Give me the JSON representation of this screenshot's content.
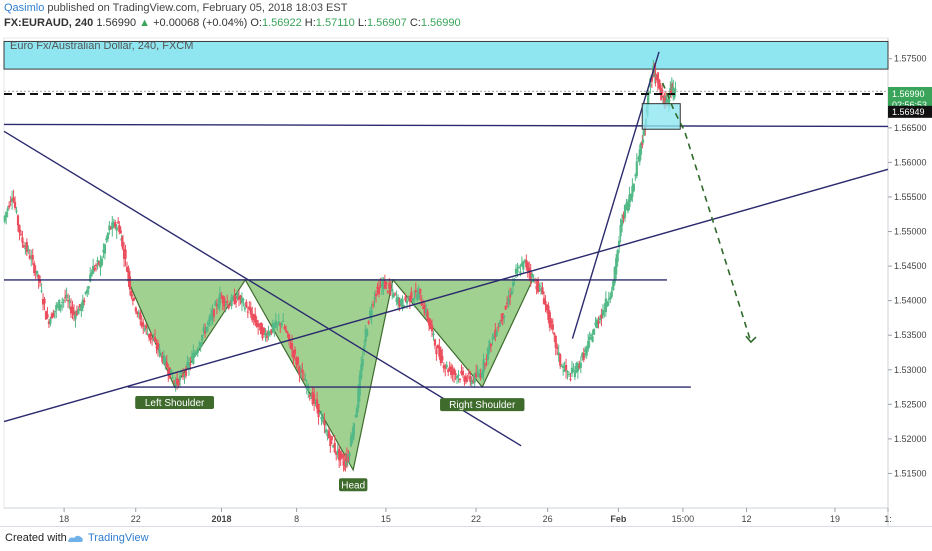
{
  "header": {
    "user": "Qasimlo",
    "published": "published on TradingView.com, February 05, 2018 18:03 EST",
    "ticker": "FX:EURAUD, 240",
    "last": "1.56990",
    "change": "+0.00068 (+0.04%)",
    "o_label": "O:",
    "o_value": "1.56922",
    "h_label": "H:",
    "h_value": "1.57110",
    "l_label": "L:",
    "l_value": "1.56907",
    "c_label": "C:",
    "c_value": "1.56990",
    "up_arrow": "▲"
  },
  "symbol_title": "Euro Fx/Australian Dollar, 240, FXCM",
  "footer": {
    "created": "Created with",
    "brand": "TradingView",
    "logo_icon": "tradingview-logo-icon"
  },
  "chart_data": {
    "type": "candlestick",
    "timeframe": "240",
    "ylim": [
      1.51,
      1.578
    ],
    "y_ticks": [
      1.515,
      1.52,
      1.525,
      1.53,
      1.535,
      1.54,
      1.545,
      1.55,
      1.555,
      1.56,
      1.565,
      1.575
    ],
    "y_tick_labels": [
      "1.51500",
      "1.52000",
      "1.52500",
      "1.53000",
      "1.53500",
      "1.54000",
      "1.54500",
      "1.55000",
      "1.55500",
      "1.56000",
      "1.56500",
      "1.57500"
    ],
    "x_tick_labels": [
      {
        "label": "18",
        "x": 0.068
      },
      {
        "label": "22",
        "x": 0.149
      },
      {
        "label": "2018",
        "x": 0.246
      },
      {
        "label": "8",
        "x": 0.331
      },
      {
        "label": "15",
        "x": 0.432
      },
      {
        "label": "22",
        "x": 0.534
      },
      {
        "label": "26",
        "x": 0.615
      },
      {
        "label": "Feb",
        "x": 0.695
      },
      {
        "label": "15:00",
        "x": 0.768
      },
      {
        "label": "12",
        "x": 0.84
      },
      {
        "label": "19",
        "x": 0.94
      },
      {
        "label": "1:",
        "x": 1.0
      }
    ],
    "price_labels": [
      {
        "value": 1.5699,
        "text": "1.56990",
        "sub": "02:56:53",
        "color": "#3aa55a"
      },
      {
        "value": 1.56949,
        "text": "1.56949",
        "color": "#111111"
      }
    ],
    "price_path": [
      [
        0.0,
        1.5515
      ],
      [
        0.01,
        1.5555
      ],
      [
        0.02,
        1.549
      ],
      [
        0.03,
        1.5465
      ],
      [
        0.04,
        1.543
      ],
      [
        0.05,
        1.537
      ],
      [
        0.06,
        1.539
      ],
      [
        0.07,
        1.5405
      ],
      [
        0.08,
        1.538
      ],
      [
        0.09,
        1.5395
      ],
      [
        0.1,
        1.5445
      ],
      [
        0.11,
        1.5455
      ],
      [
        0.12,
        1.5505
      ],
      [
        0.13,
        1.551
      ],
      [
        0.135,
        1.548
      ],
      [
        0.145,
        1.541
      ],
      [
        0.155,
        1.537
      ],
      [
        0.165,
        1.535
      ],
      [
        0.175,
        1.533
      ],
      [
        0.185,
        1.5305
      ],
      [
        0.195,
        1.528
      ],
      [
        0.205,
        1.5295
      ],
      [
        0.215,
        1.532
      ],
      [
        0.225,
        1.535
      ],
      [
        0.235,
        1.5375
      ],
      [
        0.245,
        1.5405
      ],
      [
        0.255,
        1.5395
      ],
      [
        0.265,
        1.5405
      ],
      [
        0.275,
        1.539
      ],
      [
        0.285,
        1.537
      ],
      [
        0.295,
        1.535
      ],
      [
        0.305,
        1.536
      ],
      [
        0.315,
        1.537
      ],
      [
        0.325,
        1.5335
      ],
      [
        0.335,
        1.53
      ],
      [
        0.345,
        1.527
      ],
      [
        0.355,
        1.5245
      ],
      [
        0.365,
        1.521
      ],
      [
        0.375,
        1.5185
      ],
      [
        0.385,
        1.5165
      ],
      [
        0.39,
        1.5175
      ],
      [
        0.4,
        1.525
      ],
      [
        0.41,
        1.5355
      ],
      [
        0.42,
        1.541
      ],
      [
        0.43,
        1.5425
      ],
      [
        0.44,
        1.541
      ],
      [
        0.45,
        1.5395
      ],
      [
        0.46,
        1.5405
      ],
      [
        0.47,
        1.541
      ],
      [
        0.48,
        1.5375
      ],
      [
        0.49,
        1.533
      ],
      [
        0.5,
        1.5305
      ],
      [
        0.51,
        1.5295
      ],
      [
        0.52,
        1.529
      ],
      [
        0.53,
        1.5285
      ],
      [
        0.54,
        1.5295
      ],
      [
        0.55,
        1.5335
      ],
      [
        0.56,
        1.5365
      ],
      [
        0.57,
        1.5395
      ],
      [
        0.58,
        1.544
      ],
      [
        0.59,
        1.5455
      ],
      [
        0.6,
        1.543
      ],
      [
        0.61,
        1.541
      ],
      [
        0.62,
        1.536
      ],
      [
        0.63,
        1.531
      ],
      [
        0.64,
        1.529
      ],
      [
        0.65,
        1.5305
      ],
      [
        0.66,
        1.533
      ],
      [
        0.67,
        1.5365
      ],
      [
        0.68,
        1.539
      ],
      [
        0.69,
        1.5425
      ],
      [
        0.7,
        1.552
      ],
      [
        0.71,
        1.5555
      ],
      [
        0.72,
        1.562
      ],
      [
        0.725,
        1.5645
      ],
      [
        0.73,
        1.5705
      ],
      [
        0.735,
        1.5735
      ],
      [
        0.74,
        1.5715
      ],
      [
        0.745,
        1.5695
      ],
      [
        0.75,
        1.5685
      ],
      [
        0.755,
        1.5705
      ],
      [
        0.76,
        1.5699
      ]
    ],
    "annotations": {
      "labels": [
        "Left Shoulder",
        "Head",
        "Right Shoulder"
      ],
      "pattern": "Inverse Head and Shoulders",
      "colors": {
        "shape_fill": "#90c97e",
        "label_bg": "#3f6b2c",
        "trend_line": "#2b2a6e",
        "zone_fill": "#8fe6f1",
        "projection": "#2e6a2a"
      }
    }
  }
}
